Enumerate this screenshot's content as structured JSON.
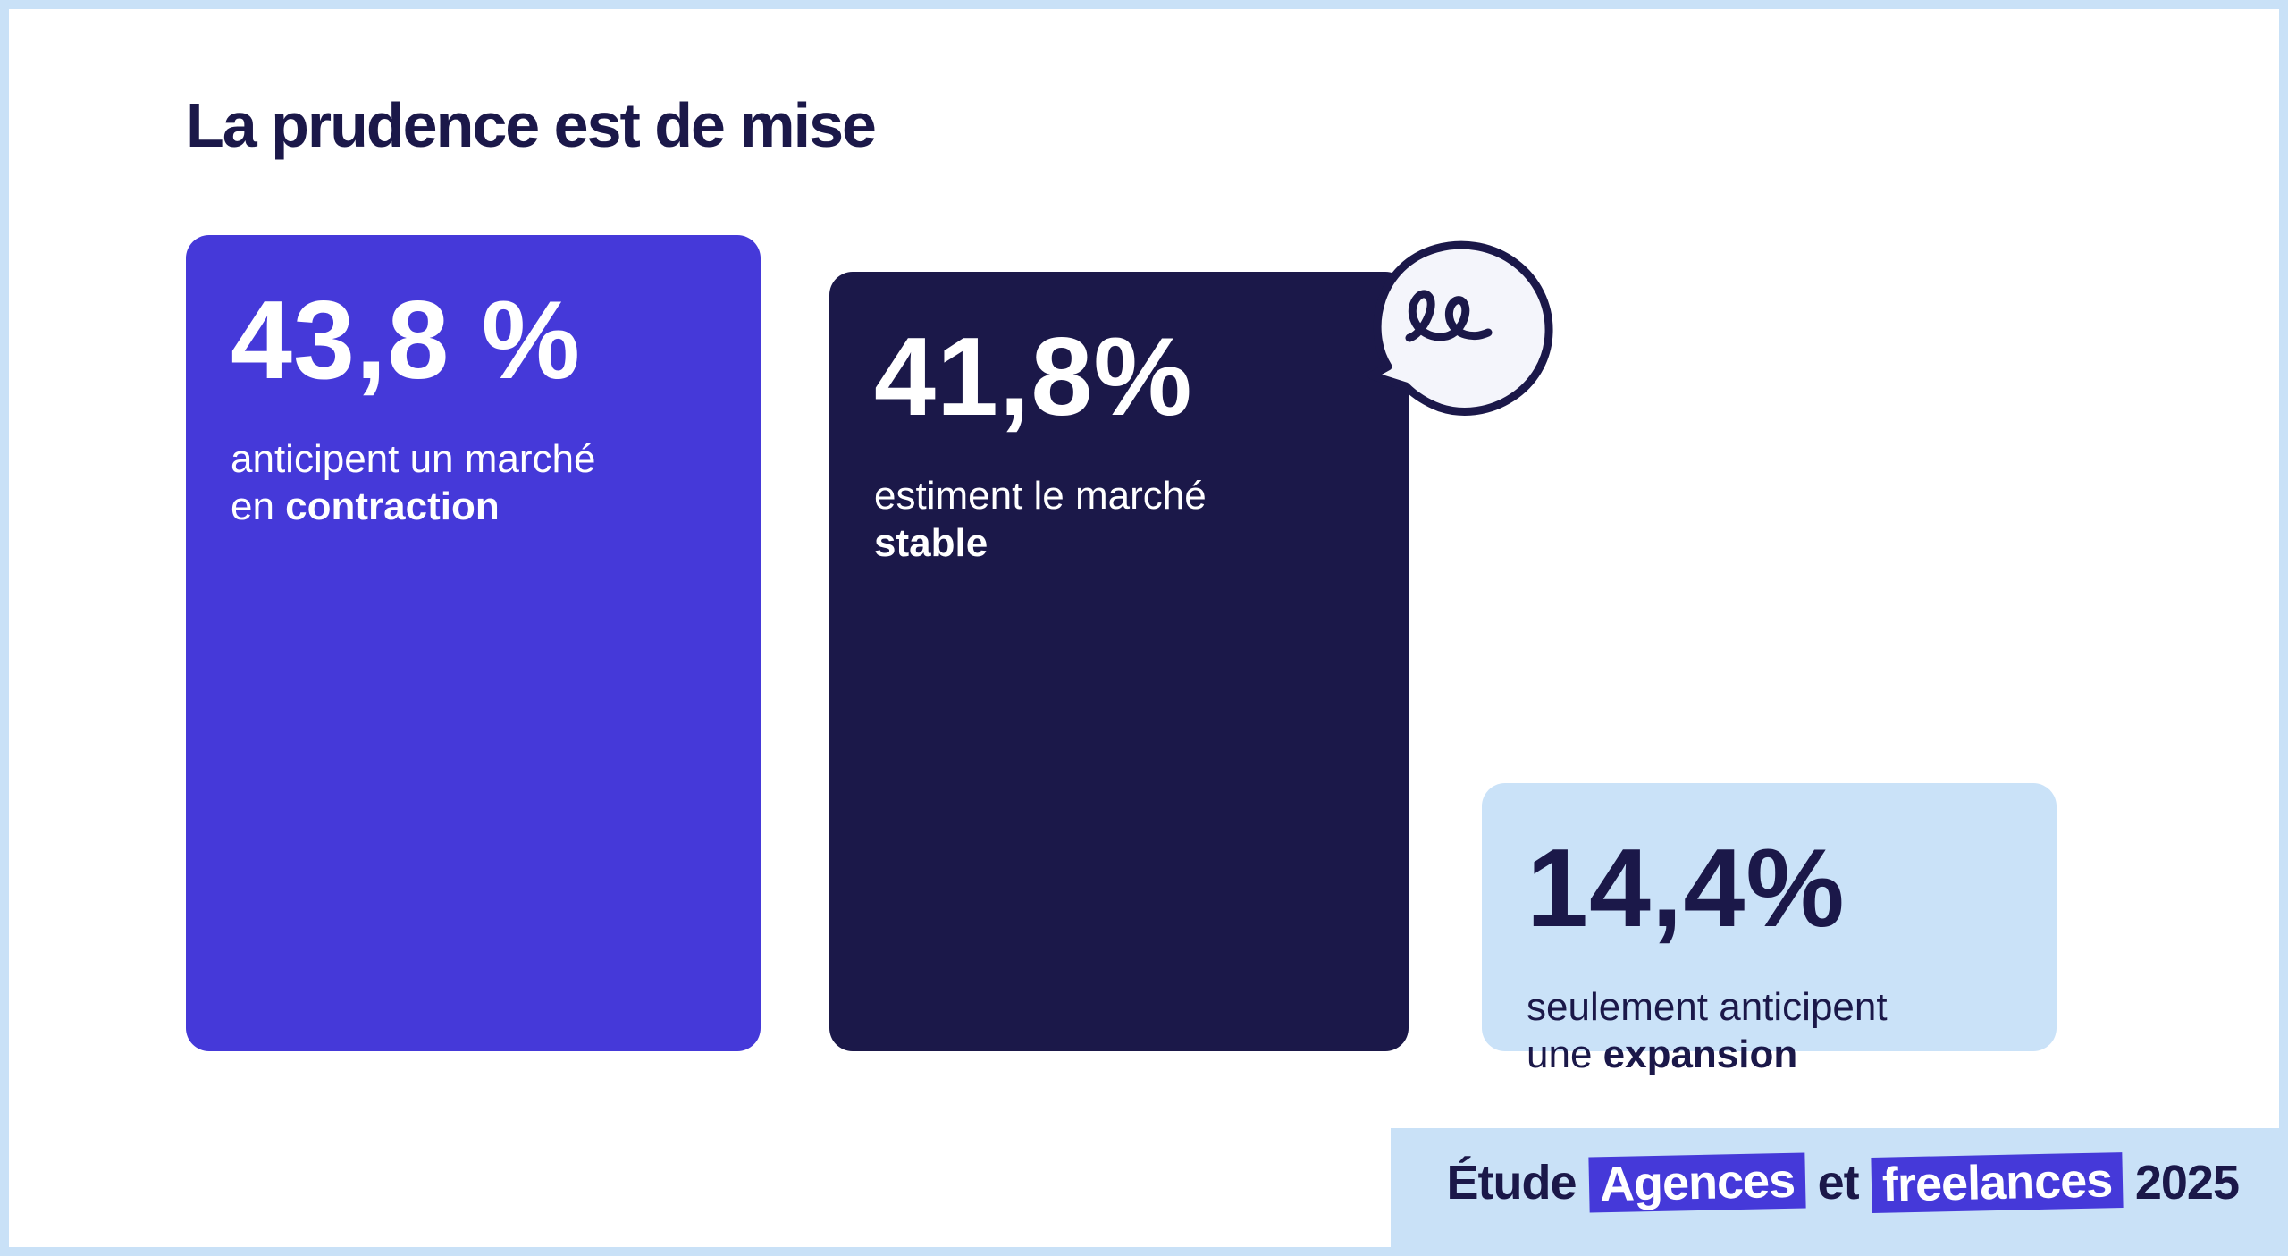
{
  "title": "La prudence est de mise",
  "chart_data": {
    "type": "bar",
    "title": "La prudence est de mise",
    "categories": [
      "contraction",
      "stable",
      "expansion"
    ],
    "values": [
      43.8,
      41.8,
      14.4
    ],
    "bars": [
      {
        "pct_label": "43,8 %",
        "desc_pre": "anticipent un marché",
        "desc_mid": "en ",
        "desc_bold": "contraction",
        "color": "#4539d9"
      },
      {
        "pct_label": "41,8%",
        "desc_pre": "estiment le marché",
        "desc_mid": "",
        "desc_bold": "stable",
        "color": "#1b1849"
      },
      {
        "pct_label": "14,4%",
        "desc_pre": "seulement anticipent",
        "desc_mid": "une ",
        "desc_bold": "expansion",
        "color": "#cae2f8"
      }
    ]
  },
  "footer": {
    "word1": "Étude",
    "word2": "Agences",
    "word3": "et",
    "word4": "freelances",
    "year": "2025"
  }
}
